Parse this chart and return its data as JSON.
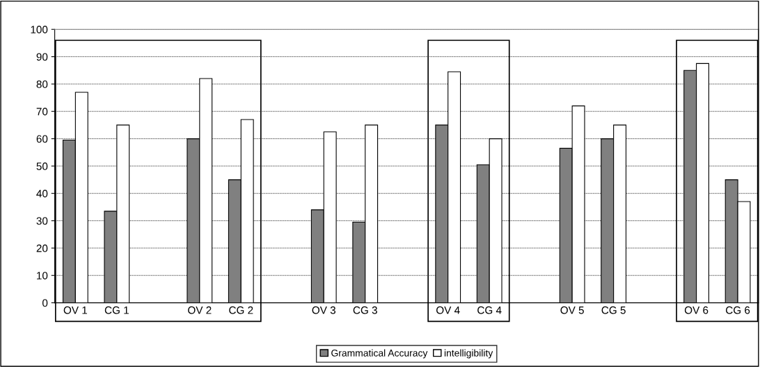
{
  "chart_data": {
    "type": "bar",
    "categories": [
      "OV 1",
      "CG 1",
      null,
      "OV 2",
      "CG 2",
      null,
      "OV 3",
      "CG 3",
      null,
      "OV 4",
      "CG 4",
      null,
      "OV 5",
      "CG 5",
      null,
      "OV 6",
      "CG 6"
    ],
    "series": [
      {
        "name": "Grammatical Accuracy",
        "color": "#808080",
        "values": [
          59.5,
          33.5,
          null,
          60,
          45,
          null,
          34,
          29.5,
          null,
          65,
          50.5,
          null,
          56.5,
          60,
          null,
          85,
          45
        ]
      },
      {
        "name": "intelligibility",
        "color": "#ffffff",
        "values": [
          77,
          65,
          null,
          82,
          67,
          null,
          62.5,
          65,
          null,
          84.5,
          60,
          null,
          72,
          65,
          null,
          87.5,
          37
        ]
      }
    ],
    "ylim": [
      0,
      100
    ],
    "yticks": [
      0,
      10,
      20,
      30,
      40,
      50,
      60,
      70,
      80,
      90,
      100
    ],
    "grid": "y",
    "legend": "bottom"
  }
}
